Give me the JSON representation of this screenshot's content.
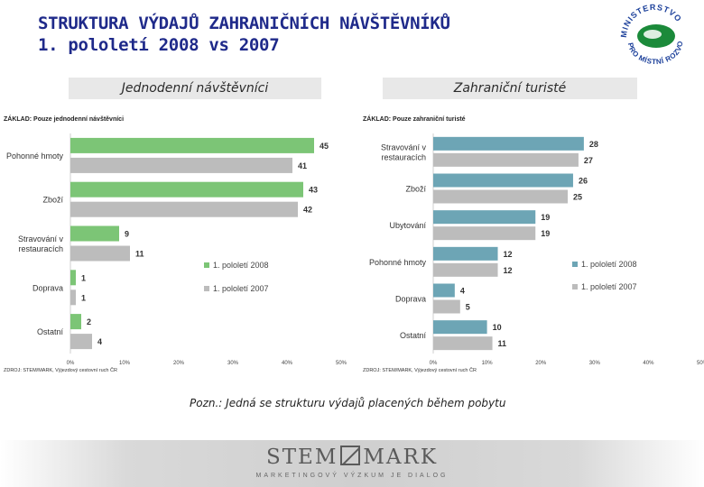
{
  "slide": {
    "title_line1": "STRUKTURA VÝDAJŮ ZAHRANIČNÍCH NÁVŠTĚVNÍKŮ",
    "title_line2": "1. pololetí 2008 vs 2007",
    "note": "Pozn.: Jedná se strukturu výdajů placených během pobytu"
  },
  "logo": {
    "arc_text": "MINISTERSTVO PRO MÍSTNÍ ROZVOJ"
  },
  "footer": {
    "brand_left": "STEM",
    "brand_right": "MARK",
    "tagline": "MARKETINGOVÝ VÝZKUM JE DIALOG"
  },
  "colors": {
    "title": "#1f2a8a",
    "green": "#7cc576",
    "teal": "#6da5b5",
    "gray": "#bcbcbc"
  },
  "panels": {
    "left": {
      "header": "Jednodenní návštěvníci"
    },
    "right": {
      "header": "Zahraniční turisté"
    }
  },
  "chart_data": [
    {
      "type": "bar",
      "orientation": "horizontal",
      "title": "Jednodenní návštěvníci",
      "basis": "ZÁKLAD: Pouze jednodenní návštěvníci",
      "source": "ZDROJ: STEM/MARK, Výjezdový cestovní ruch ČR",
      "categories": [
        "Pohonné hmoty",
        "Zboží",
        "Stravování v restauracích",
        "Doprava",
        "Ostatní"
      ],
      "category_lines": [
        [
          "Pohonné hmoty"
        ],
        [
          "Zboží"
        ],
        [
          "Stravování v",
          "restauracích"
        ],
        [
          "Doprava"
        ],
        [
          "Ostatní"
        ]
      ],
      "series": [
        {
          "name": "1. pololetí 2008",
          "color": "#7cc576",
          "values": [
            45,
            43,
            9,
            1,
            2
          ]
        },
        {
          "name": "1. pololetí 2007",
          "color": "#bcbcbc",
          "values": [
            41,
            42,
            11,
            1,
            4
          ]
        }
      ],
      "xlim": [
        0,
        50
      ],
      "ticks": [
        "0%",
        "10%",
        "20%",
        "30%",
        "40%",
        "50%"
      ],
      "legend": "lower-right"
    },
    {
      "type": "bar",
      "orientation": "horizontal",
      "title": "Zahraniční turisté",
      "basis": "ZÁKLAD: Pouze zahraniční turisté",
      "source": "ZDROJ: STEM/MARK, Výjezdový cestovní ruch ČR",
      "categories": [
        "Stravování v restauracích",
        "Zboží",
        "Ubytování",
        "Pohonné hmoty",
        "Doprava",
        "Ostatní"
      ],
      "category_lines": [
        [
          "Stravování v",
          "restauracích"
        ],
        [
          "Zboží"
        ],
        [
          "Ubytování"
        ],
        [
          "Pohonné hmoty"
        ],
        [
          "Doprava"
        ],
        [
          "Ostatní"
        ]
      ],
      "series": [
        {
          "name": "1. pololetí 2008",
          "color": "#6da5b5",
          "values": [
            28,
            26,
            19,
            12,
            4,
            10
          ]
        },
        {
          "name": "1. pololetí 2007",
          "color": "#bcbcbc",
          "values": [
            27,
            25,
            19,
            12,
            5,
            11
          ]
        }
      ],
      "xlim": [
        0,
        50
      ],
      "ticks": [
        "0%",
        "10%",
        "20%",
        "30%",
        "40%",
        "50%"
      ],
      "legend": "lower-right"
    }
  ]
}
